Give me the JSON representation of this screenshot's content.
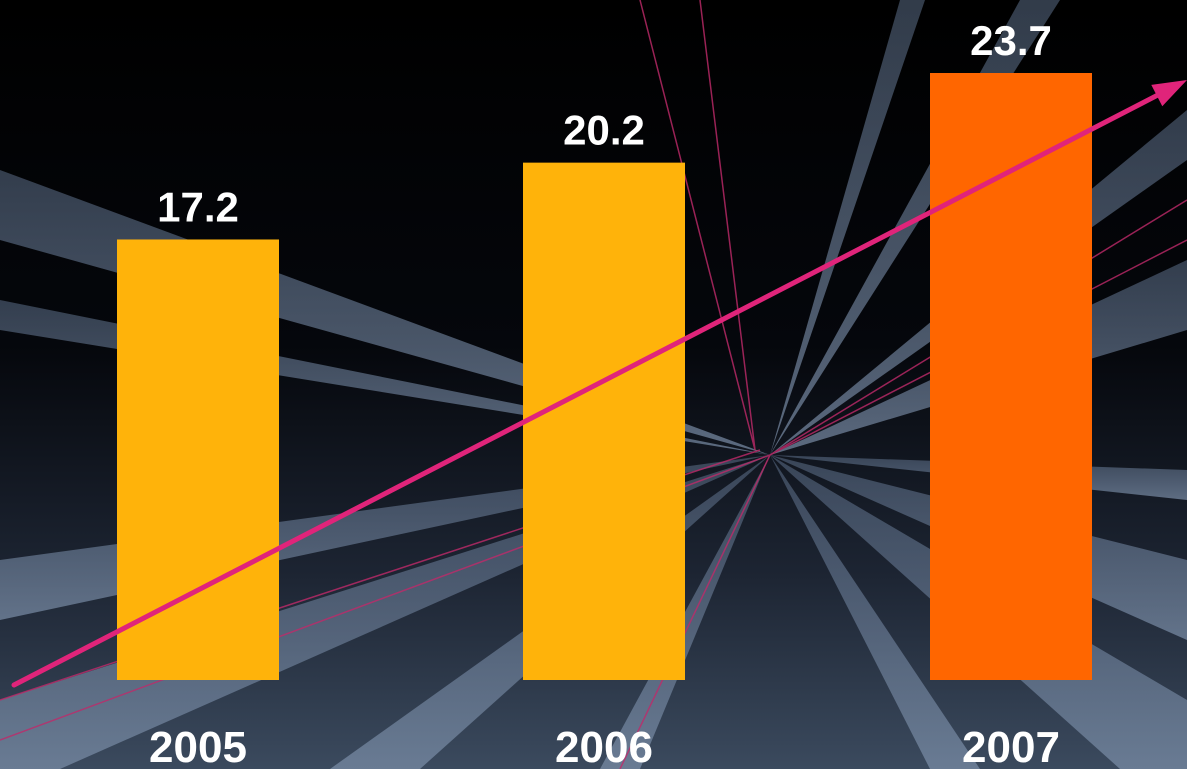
{
  "chart_data": {
    "type": "bar",
    "title": "",
    "xlabel": "",
    "ylabel": "",
    "categories": [
      "2005",
      "2006",
      "2007"
    ],
    "values": [
      17.2,
      20.2,
      23.7
    ],
    "value_labels": [
      "17.2",
      "20.2",
      "23.7"
    ],
    "ylim": [
      0,
      23.7
    ],
    "grid": false,
    "legend": "none",
    "trend_arrow": true,
    "colors": {
      "bars": [
        "#FFB30A",
        "#FFB30A",
        "#FF6600"
      ],
      "trend_arrow": "#E0247A",
      "text": "#FFFFFF",
      "background_top": "#000000",
      "background_bottom": "#3B4A5E"
    }
  }
}
